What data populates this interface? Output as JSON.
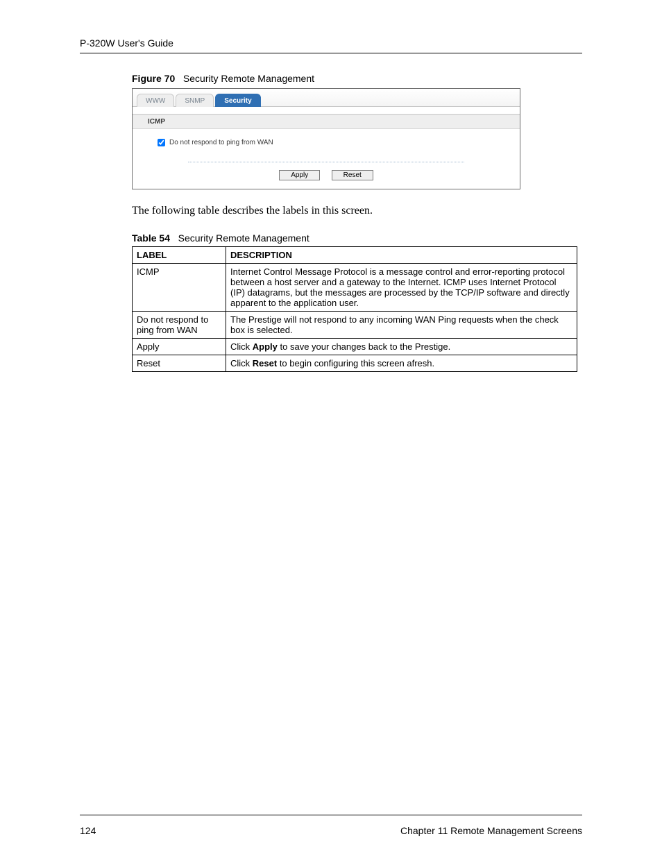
{
  "header": {
    "guide_title": "P-320W User's Guide"
  },
  "figure": {
    "label_prefix": "Figure 70",
    "caption": "Security Remote Management",
    "tabs": [
      {
        "label": "WWW",
        "active": false
      },
      {
        "label": "SNMP",
        "active": false
      },
      {
        "label": "Security",
        "active": true
      }
    ],
    "section_title": "ICMP",
    "checkbox": {
      "label": "Do not respond to ping from WAN",
      "checked": true
    },
    "buttons": {
      "apply": "Apply",
      "reset": "Reset"
    },
    "colors": {
      "active_tab_bg": "#2f6fb3",
      "active_tab_text": "#ffffff",
      "inactive_tab_text": "#78838e",
      "section_bg": "#eeeeee",
      "dotted_sep": "#9fb8cf",
      "box_border": "#6b6b6b"
    }
  },
  "body_paragraph": "The following table describes the labels in this screen.",
  "table": {
    "label_prefix": "Table 54",
    "caption": "Security Remote Management",
    "columns": [
      "LABEL",
      "DESCRIPTION"
    ],
    "rows": [
      {
        "label": "ICMP",
        "desc_plain": "Internet Control Message Protocol is a message control and error-reporting protocol between a host server and a gateway to the Internet. ICMP uses Internet Protocol (IP) datagrams, but the messages are processed by the TCP/IP software and directly apparent to the application user."
      },
      {
        "label": "Do not respond to ping from WAN",
        "desc_plain": "The Prestige will not respond to any incoming WAN Ping requests when the check box is selected."
      },
      {
        "label": "Apply",
        "desc_pre": "Click ",
        "desc_bold": "Apply",
        "desc_post": " to save your changes back to the Prestige."
      },
      {
        "label": "Reset",
        "desc_pre": "Click ",
        "desc_bold": "Reset",
        "desc_post": " to begin configuring this screen afresh."
      }
    ]
  },
  "footer": {
    "page_number": "124",
    "chapter": "Chapter 11 Remote Management Screens"
  }
}
